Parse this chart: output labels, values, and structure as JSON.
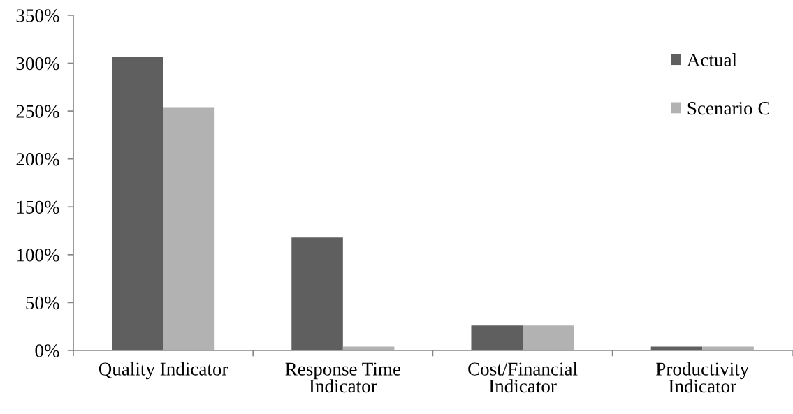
{
  "chart_data": {
    "type": "bar",
    "categories": [
      "Quality Indicator",
      "Response Time Indicator",
      "Cost/Financial Indicator",
      "Productivity Indicator"
    ],
    "series": [
      {
        "name": "Actual",
        "color": "#5f5f5f",
        "values": [
          307,
          118,
          26,
          4
        ]
      },
      {
        "name": "Scenario C",
        "color": "#b2b2b2",
        "values": [
          254,
          4,
          26,
          4
        ]
      }
    ],
    "ylim": [
      0,
      350
    ],
    "yticks": [
      {
        "value": 0,
        "label": "0%"
      },
      {
        "value": 50,
        "label": "50%"
      },
      {
        "value": 100,
        "label": "100%"
      },
      {
        "value": 150,
        "label": "150%"
      },
      {
        "value": 200,
        "label": "200%"
      },
      {
        "value": 250,
        "label": "250%"
      },
      {
        "value": 300,
        "label": "300%"
      },
      {
        "value": 350,
        "label": "350%"
      }
    ],
    "legend": "top right"
  }
}
